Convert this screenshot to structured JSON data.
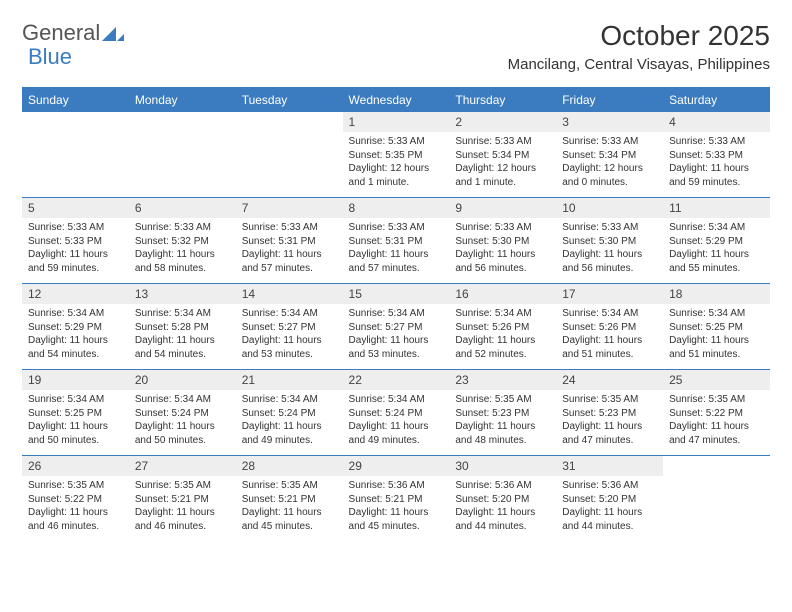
{
  "brand": {
    "part1": "General",
    "part2": "Blue"
  },
  "title": "October 2025",
  "location": "Mancilang, Central Visayas, Philippines",
  "colors": {
    "header_bg": "#3b7bbf",
    "header_text": "#ffffff",
    "daynum_bg": "#eeeeee",
    "text": "#333333",
    "border": "#3b7bbf"
  },
  "fonts": {
    "title_size": 28,
    "location_size": 15,
    "header_size": 12,
    "cell_size": 10
  },
  "daysOfWeek": [
    "Sunday",
    "Monday",
    "Tuesday",
    "Wednesday",
    "Thursday",
    "Friday",
    "Saturday"
  ],
  "weeks": [
    [
      null,
      null,
      null,
      {
        "n": "1",
        "sr": "5:33 AM",
        "ss": "5:35 PM",
        "dl": "12 hours and 1 minute."
      },
      {
        "n": "2",
        "sr": "5:33 AM",
        "ss": "5:34 PM",
        "dl": "12 hours and 1 minute."
      },
      {
        "n": "3",
        "sr": "5:33 AM",
        "ss": "5:34 PM",
        "dl": "12 hours and 0 minutes."
      },
      {
        "n": "4",
        "sr": "5:33 AM",
        "ss": "5:33 PM",
        "dl": "11 hours and 59 minutes."
      }
    ],
    [
      {
        "n": "5",
        "sr": "5:33 AM",
        "ss": "5:33 PM",
        "dl": "11 hours and 59 minutes."
      },
      {
        "n": "6",
        "sr": "5:33 AM",
        "ss": "5:32 PM",
        "dl": "11 hours and 58 minutes."
      },
      {
        "n": "7",
        "sr": "5:33 AM",
        "ss": "5:31 PM",
        "dl": "11 hours and 57 minutes."
      },
      {
        "n": "8",
        "sr": "5:33 AM",
        "ss": "5:31 PM",
        "dl": "11 hours and 57 minutes."
      },
      {
        "n": "9",
        "sr": "5:33 AM",
        "ss": "5:30 PM",
        "dl": "11 hours and 56 minutes."
      },
      {
        "n": "10",
        "sr": "5:33 AM",
        "ss": "5:30 PM",
        "dl": "11 hours and 56 minutes."
      },
      {
        "n": "11",
        "sr": "5:34 AM",
        "ss": "5:29 PM",
        "dl": "11 hours and 55 minutes."
      }
    ],
    [
      {
        "n": "12",
        "sr": "5:34 AM",
        "ss": "5:29 PM",
        "dl": "11 hours and 54 minutes."
      },
      {
        "n": "13",
        "sr": "5:34 AM",
        "ss": "5:28 PM",
        "dl": "11 hours and 54 minutes."
      },
      {
        "n": "14",
        "sr": "5:34 AM",
        "ss": "5:27 PM",
        "dl": "11 hours and 53 minutes."
      },
      {
        "n": "15",
        "sr": "5:34 AM",
        "ss": "5:27 PM",
        "dl": "11 hours and 53 minutes."
      },
      {
        "n": "16",
        "sr": "5:34 AM",
        "ss": "5:26 PM",
        "dl": "11 hours and 52 minutes."
      },
      {
        "n": "17",
        "sr": "5:34 AM",
        "ss": "5:26 PM",
        "dl": "11 hours and 51 minutes."
      },
      {
        "n": "18",
        "sr": "5:34 AM",
        "ss": "5:25 PM",
        "dl": "11 hours and 51 minutes."
      }
    ],
    [
      {
        "n": "19",
        "sr": "5:34 AM",
        "ss": "5:25 PM",
        "dl": "11 hours and 50 minutes."
      },
      {
        "n": "20",
        "sr": "5:34 AM",
        "ss": "5:24 PM",
        "dl": "11 hours and 50 minutes."
      },
      {
        "n": "21",
        "sr": "5:34 AM",
        "ss": "5:24 PM",
        "dl": "11 hours and 49 minutes."
      },
      {
        "n": "22",
        "sr": "5:34 AM",
        "ss": "5:24 PM",
        "dl": "11 hours and 49 minutes."
      },
      {
        "n": "23",
        "sr": "5:35 AM",
        "ss": "5:23 PM",
        "dl": "11 hours and 48 minutes."
      },
      {
        "n": "24",
        "sr": "5:35 AM",
        "ss": "5:23 PM",
        "dl": "11 hours and 47 minutes."
      },
      {
        "n": "25",
        "sr": "5:35 AM",
        "ss": "5:22 PM",
        "dl": "11 hours and 47 minutes."
      }
    ],
    [
      {
        "n": "26",
        "sr": "5:35 AM",
        "ss": "5:22 PM",
        "dl": "11 hours and 46 minutes."
      },
      {
        "n": "27",
        "sr": "5:35 AM",
        "ss": "5:21 PM",
        "dl": "11 hours and 46 minutes."
      },
      {
        "n": "28",
        "sr": "5:35 AM",
        "ss": "5:21 PM",
        "dl": "11 hours and 45 minutes."
      },
      {
        "n": "29",
        "sr": "5:36 AM",
        "ss": "5:21 PM",
        "dl": "11 hours and 45 minutes."
      },
      {
        "n": "30",
        "sr": "5:36 AM",
        "ss": "5:20 PM",
        "dl": "11 hours and 44 minutes."
      },
      {
        "n": "31",
        "sr": "5:36 AM",
        "ss": "5:20 PM",
        "dl": "11 hours and 44 minutes."
      },
      null
    ]
  ],
  "labels": {
    "sunrise": "Sunrise:",
    "sunset": "Sunset:",
    "daylight": "Daylight:"
  }
}
